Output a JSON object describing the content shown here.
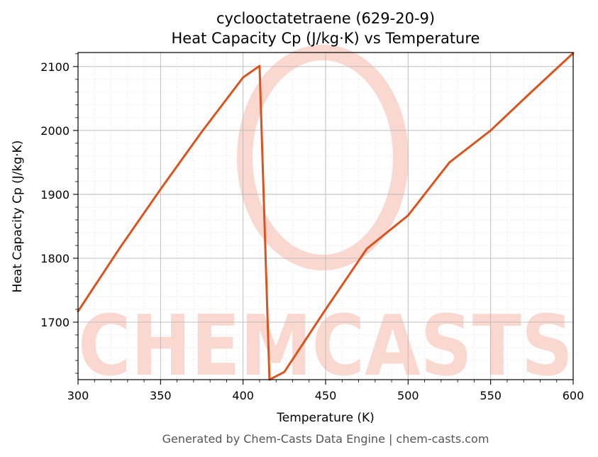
{
  "chart_data": {
    "type": "line",
    "title_line1": "cyclooctatetraene (629-20-9)",
    "title_line2": "Heat Capacity Cp (J/kg·K) vs Temperature",
    "xlabel": "Temperature (K)",
    "ylabel": "Heat Capacity Cp (J/kg·K)",
    "xlim": [
      300,
      600
    ],
    "ylim": [
      1610,
      2122
    ],
    "xticks": [
      300,
      350,
      400,
      450,
      500,
      550,
      600
    ],
    "yticks": [
      1700,
      1800,
      1900,
      2000,
      2100
    ],
    "grid": true,
    "series": [
      {
        "color": "#d9541e",
        "x": [
          300,
          325,
          350,
          375,
          400,
          410,
          416,
          425,
          450,
          475,
          500,
          525,
          550,
          575,
          600
        ],
        "y": [
          1717,
          1815,
          1908,
          1998,
          2083,
          2101,
          1610,
          1622,
          1720,
          1815,
          1867,
          1950,
          2000,
          2061,
          2121
        ]
      }
    ]
  },
  "watermark": {
    "text": "CHEMCASTS",
    "color": "#fbd8cf"
  },
  "footer": "Generated by Chem-Casts Data Engine | chem-casts.com"
}
